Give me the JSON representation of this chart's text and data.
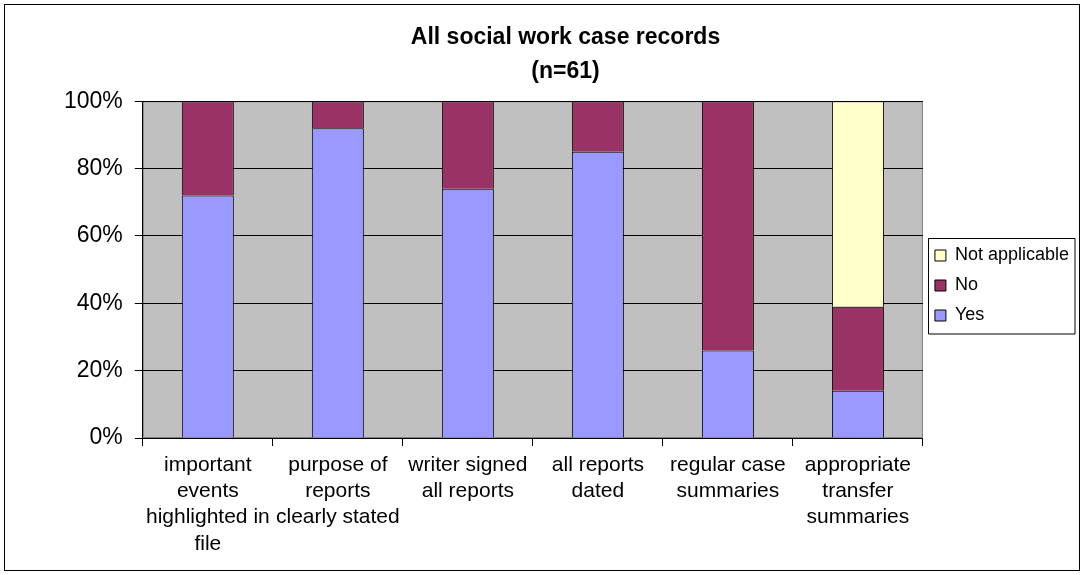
{
  "chart_data": {
    "type": "bar",
    "title": "All social work case records",
    "subtitle": "(n=61)",
    "categories": [
      "important events highlighted in file",
      "purpose of reports clearly stated",
      "writer signed all reports",
      "all reports dated",
      "regular case summaries",
      "appropriate transfer summaries"
    ],
    "series": [
      {
        "name": "Yes",
        "color": "#9999ff",
        "values": [
          72,
          92,
          74,
          85,
          26,
          14
        ]
      },
      {
        "name": "No",
        "color": "#993366",
        "values": [
          28,
          8,
          26,
          15,
          74,
          25
        ]
      },
      {
        "name": "Not applicable",
        "color": "#ffffcc",
        "values": [
          null,
          null,
          null,
          null,
          null,
          61
        ]
      }
    ],
    "stacked": true,
    "ylim": [
      0,
      100
    ],
    "yticks": [
      {
        "value": 0,
        "label": "0%"
      },
      {
        "value": 20,
        "label": "20%"
      },
      {
        "value": 40,
        "label": "40%"
      },
      {
        "value": 60,
        "label": "60%"
      },
      {
        "value": 80,
        "label": "80%"
      },
      {
        "value": 100,
        "label": "100%"
      }
    ],
    "grid": "y",
    "legend": "right"
  }
}
